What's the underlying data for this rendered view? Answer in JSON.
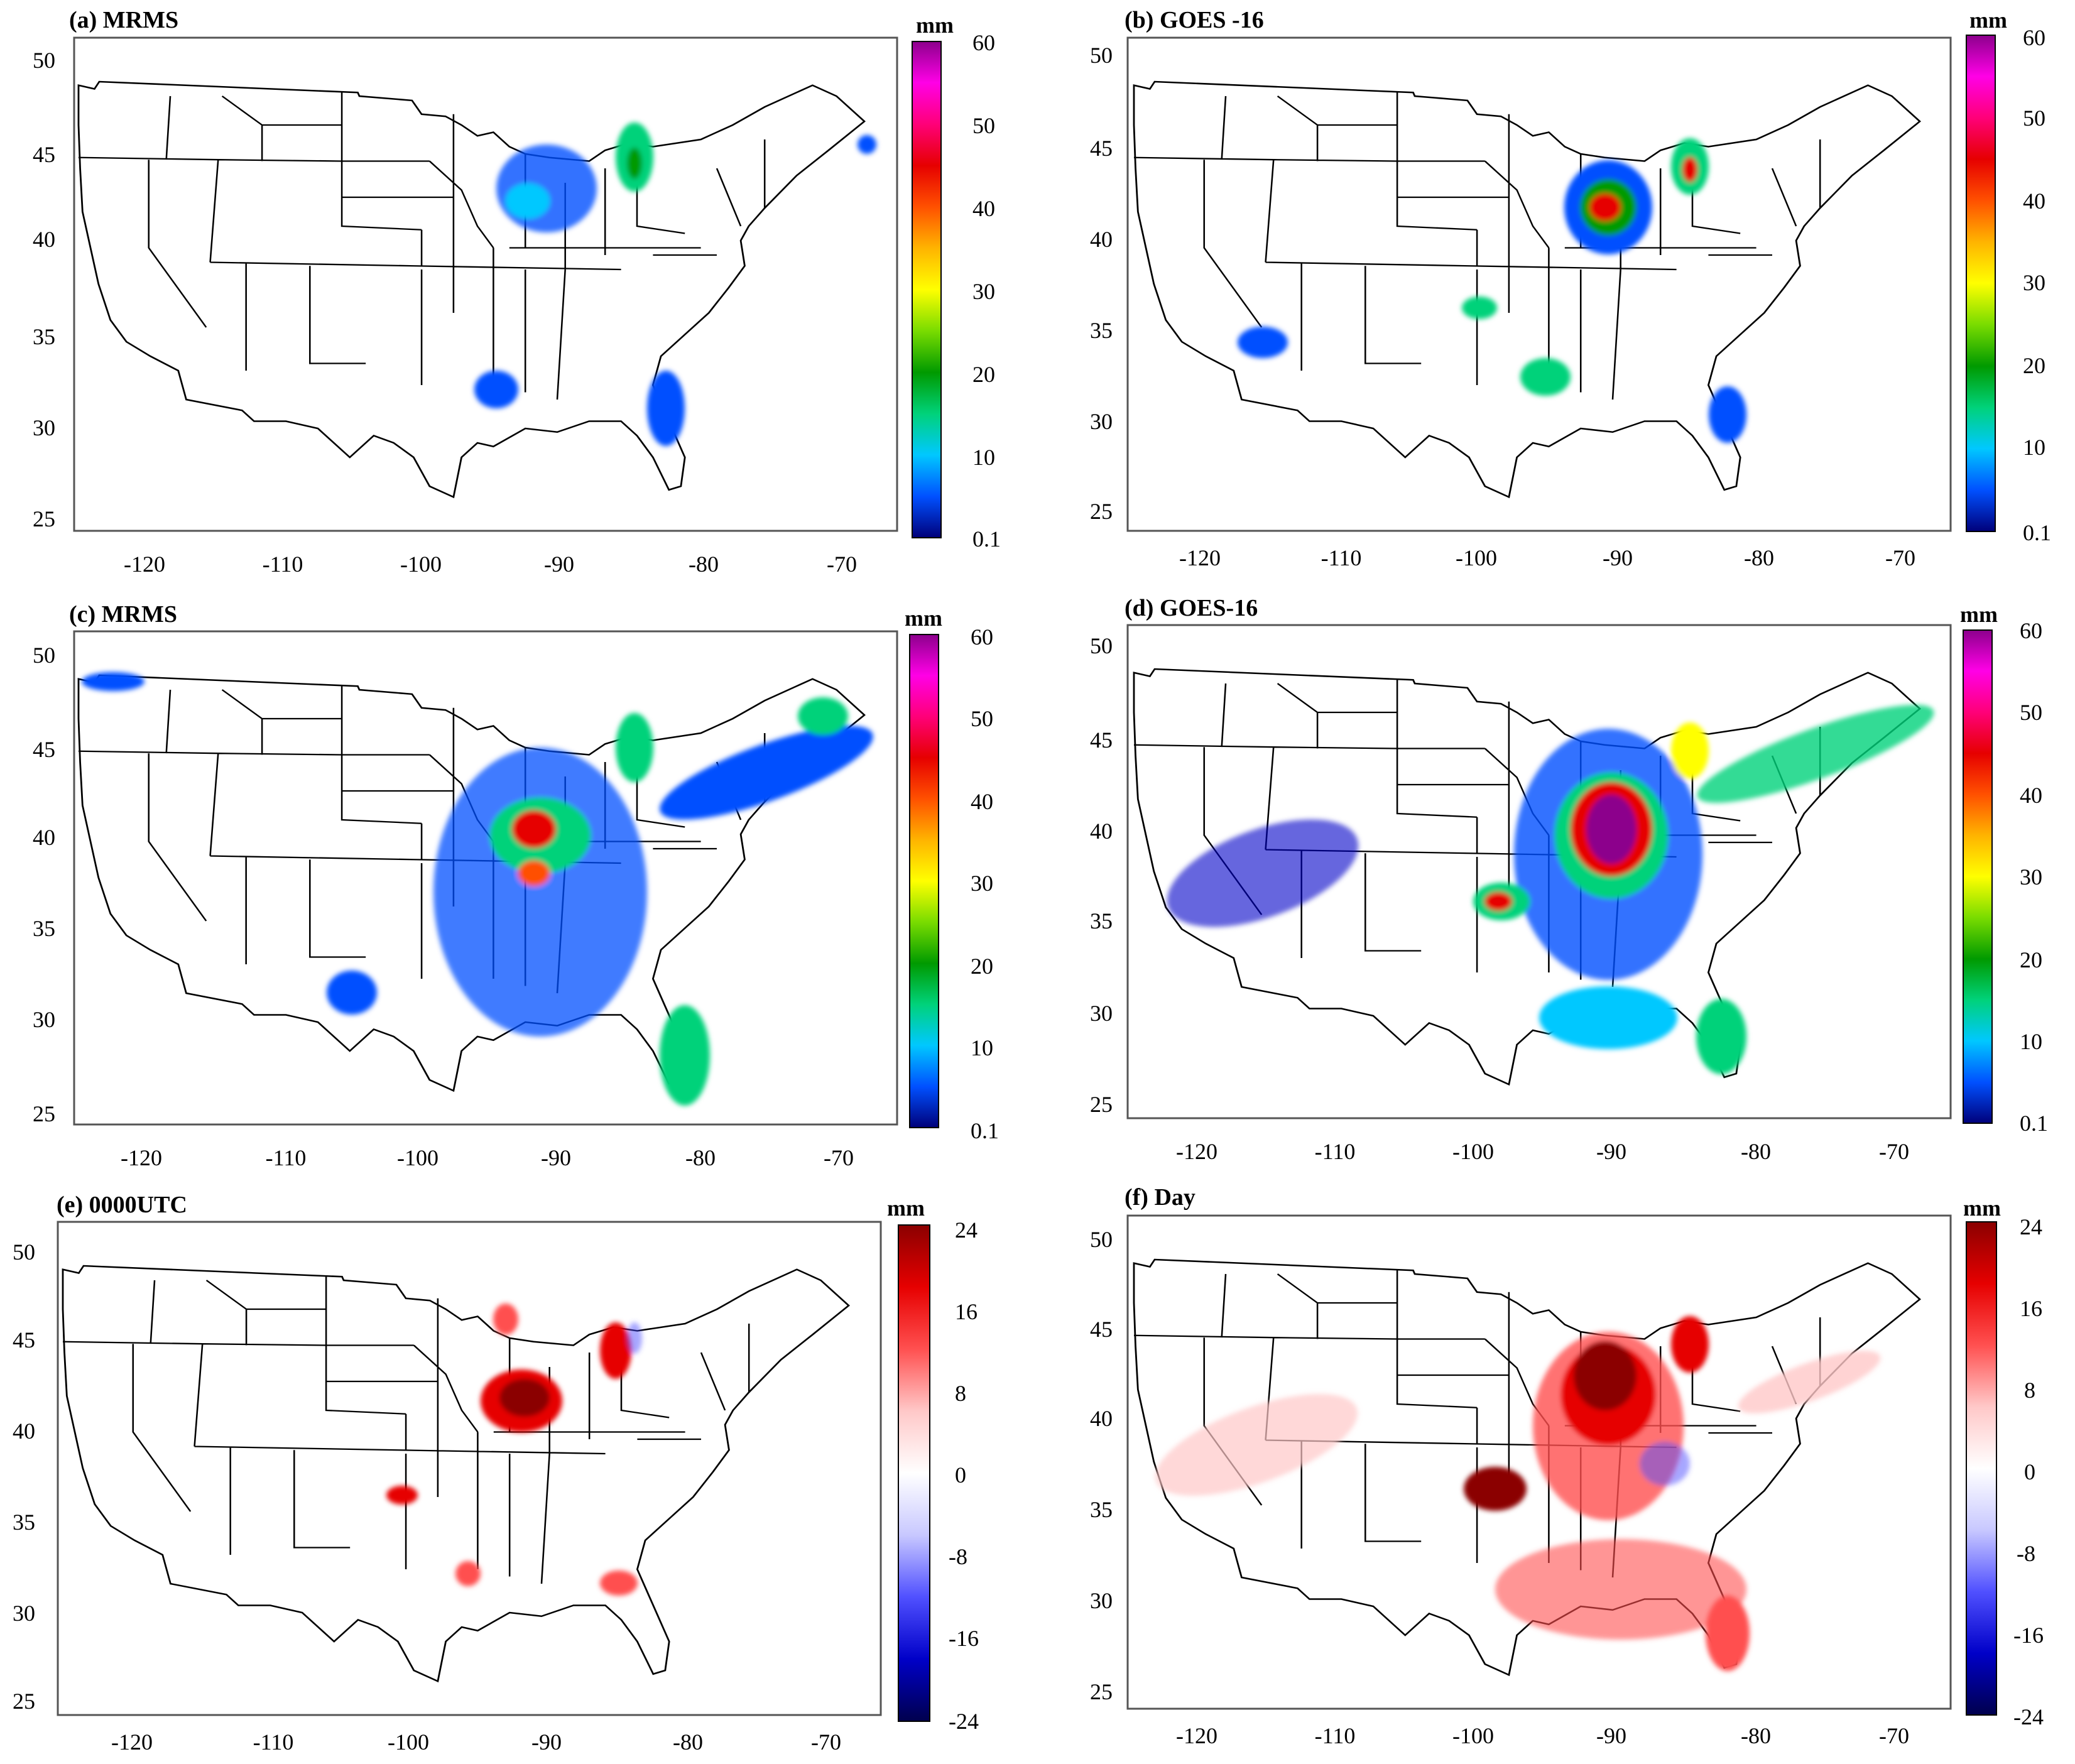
{
  "figure": {
    "panels": [
      {
        "id": "a",
        "title": "(a) MRMS",
        "type": "precip"
      },
      {
        "id": "b",
        "title": "(b) GOES -16",
        "type": "precip"
      },
      {
        "id": "c",
        "title": "(c) MRMS",
        "type": "precip"
      },
      {
        "id": "d",
        "title": "(d) GOES-16",
        "type": "precip"
      },
      {
        "id": "e",
        "title": "(e) 0000UTC",
        "type": "diff"
      },
      {
        "id": "f",
        "title": "(f) Day",
        "type": "diff"
      }
    ],
    "x_ticks": [
      "-120",
      "-110",
      "-100",
      "-90",
      "-80",
      "-70"
    ],
    "y_ticks": [
      "25",
      "30",
      "35",
      "40",
      "45",
      "50"
    ],
    "colorbar_unit": "mm",
    "precip_colorbar": {
      "labels": [
        "0.1",
        "10",
        "20",
        "30",
        "40",
        "50",
        "60"
      ],
      "colors": [
        "#00007a",
        "#0050ff",
        "#00c8ff",
        "#00d27a",
        "#009a00",
        "#7adc00",
        "#ffff00",
        "#ffb400",
        "#ff5000",
        "#e60000",
        "#ff0078",
        "#ff00e6",
        "#8c008c"
      ]
    },
    "diff_colorbar": {
      "labels": [
        "-24",
        "-16",
        "-8",
        "0",
        "8",
        "16",
        "24"
      ],
      "colors": [
        "#00004d",
        "#0000c8",
        "#5050ff",
        "#c8c8ff",
        "#ffffff",
        "#ffc8c8",
        "#ff5050",
        "#e60000",
        "#8b0000"
      ]
    }
  }
}
